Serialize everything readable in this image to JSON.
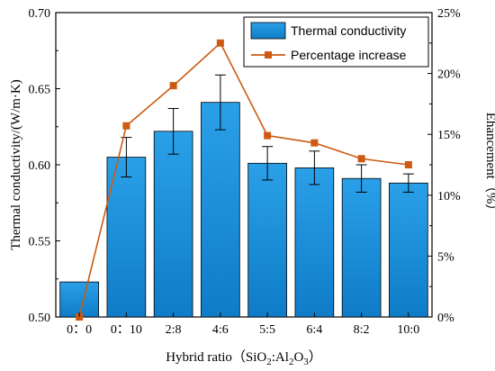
{
  "chart_data": {
    "type": "bar",
    "categories": [
      "0：0",
      "0：10",
      "2:8",
      "4:6",
      "5:5",
      "6:4",
      "8:2",
      "10:0"
    ],
    "xlabel_main": "Hybrid ratio（SiO",
    "xlabel_sub1": "2",
    "xlabel_mid": ":Al",
    "xlabel_sub2": "2",
    "xlabel_o": "O",
    "xlabel_sub3": "3",
    "xlabel_end": "）",
    "ylabel": "Thermal conductivity/(W/m·K)",
    "y2label": "Ehancement（%）",
    "ylim": [
      0.5,
      0.7
    ],
    "y2lim": [
      0,
      25
    ],
    "yticks": [
      "0.50",
      "0.55",
      "0.60",
      "0.65",
      "0.70"
    ],
    "y2ticks": [
      "0%",
      "5%",
      "10%",
      "15%",
      "20%",
      "25%"
    ],
    "series": [
      {
        "name": "Thermal conductivity",
        "kind": "bar",
        "color": "#1b8fd6",
        "values": [
          0.523,
          0.605,
          0.622,
          0.641,
          0.601,
          0.598,
          0.591,
          0.588
        ],
        "errors": [
          0,
          0.013,
          0.015,
          0.018,
          0.011,
          0.011,
          0.009,
          0.006
        ]
      },
      {
        "name": "Percentage increase",
        "kind": "line",
        "color": "#cc5a10",
        "values": [
          0,
          15.7,
          19.0,
          22.5,
          14.9,
          14.3,
          13.0,
          12.5
        ]
      }
    ],
    "legend": "top-right"
  }
}
